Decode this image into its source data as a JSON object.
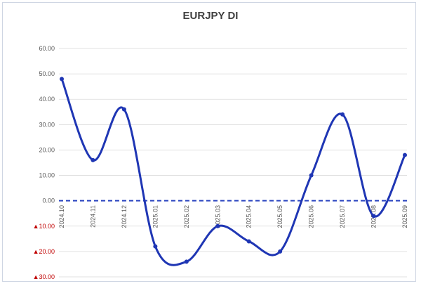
{
  "chart_data": {
    "type": "line",
    "title": "EURJPY DI",
    "xlabel": "",
    "ylabel": "",
    "categories": [
      "2024.10",
      "2024.11",
      "2024.12",
      "2025.01",
      "2025.02",
      "2025.03",
      "2025.04",
      "2025.05",
      "2025.06",
      "2025.07",
      "2025.08",
      "2025.09"
    ],
    "series": [
      {
        "values": [
          48,
          16,
          36,
          -18,
          -24,
          -10,
          -16,
          -20,
          10,
          34,
          -6,
          18
        ]
      }
    ],
    "ylim": [
      -30,
      60
    ],
    "y_ticks": [
      {
        "value": 60,
        "label": "60.00"
      },
      {
        "value": 50,
        "label": "50.00"
      },
      {
        "value": 40,
        "label": "40.00"
      },
      {
        "value": 30,
        "label": "30.00"
      },
      {
        "value": 20,
        "label": "20.00"
      },
      {
        "value": 10,
        "label": "10.00"
      },
      {
        "value": 0,
        "label": "0.00"
      },
      {
        "value": -10,
        "label": "▲10.00"
      },
      {
        "value": -20,
        "label": "▲20.00"
      },
      {
        "value": -30,
        "label": "▲30.00"
      }
    ],
    "grid": true,
    "legend": "none",
    "zero_line": "dashed",
    "colors": {
      "line": "#1f36b4",
      "zero_line": "#2a44c0",
      "grid": "#d9d9d9",
      "negative_label": "#c00000",
      "text": "#595959",
      "title": "#404040"
    }
  }
}
